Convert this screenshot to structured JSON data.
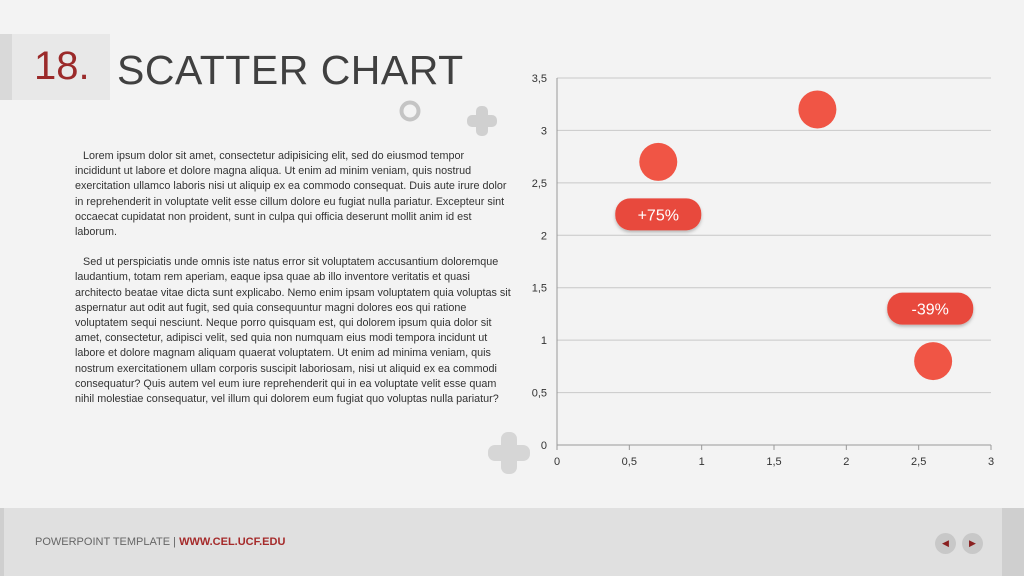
{
  "slide": {
    "number": "18.",
    "title": "SCATTER CHART",
    "paragraphs": [
      "Lorem ipsum dolor sit amet, consectetur adipisicing elit, sed do eiusmod tempor incididunt ut labore et dolore magna aliqua. Ut enim ad minim veniam, quis nostrud exercitation ullamco laboris nisi ut aliquip ex ea commodo consequat. Duis aute irure dolor in reprehenderit in voluptate velit esse cillum dolore eu fugiat nulla pariatur. Excepteur sint occaecat cupidatat non proident, sunt in culpa qui officia deserunt mollit anim id est laborum.",
      "Sed ut perspiciatis unde omnis iste natus error sit voluptatem accusantium doloremque laudantium, totam rem aperiam, eaque ipsa quae ab illo inventore veritatis et quasi architecto beatae vitae dicta sunt explicabo. Nemo enim ipsam voluptatem quia voluptas sit aspernatur aut odit aut fugit, sed quia consequuntur magni dolores eos qui ratione voluptatem sequi nesciunt. Neque porro quisquam est, qui dolorem ipsum quia dolor sit amet, consectetur, adipisci velit, sed quia non numquam eius modi tempora incidunt ut labore et dolore magnam aliquam quaerat voluptatem. Ut enim ad minima veniam, quis nostrum exercitationem ullam corporis suscipit laboriosam, nisi ut aliquid ex ea commodi consequatur? Quis autem vel eum iure reprehenderit qui in ea voluptate velit esse quam nihil molestiae consequatur, vel illum qui dolorem eum fugiat quo voluptas nulla pariatur?"
    ]
  },
  "footer": {
    "label": "POWERPOINT TEMPLATE",
    "separator": "|",
    "url": "WWW.CEL.UCF.EDU",
    "prev_icon": "prev-arrow-icon",
    "next_icon": "next-arrow-icon",
    "prev_glyph": "◀",
    "next_glyph": "▶"
  },
  "colors": {
    "accent": "#9b2a2a",
    "point": "#f05545",
    "callout": "#e84a3c",
    "grid": "#c8c8c8",
    "axis": "#999999"
  },
  "chart_data": {
    "type": "scatter",
    "points": [
      {
        "x": 0.7,
        "y": 2.7
      },
      {
        "x": 1.8,
        "y": 3.2
      },
      {
        "x": 2.6,
        "y": 0.8
      }
    ],
    "xlim": [
      0,
      3
    ],
    "ylim": [
      0,
      3.5
    ],
    "xticks": [
      "0",
      "0,5",
      "1",
      "1,5",
      "2",
      "2,5",
      "3"
    ],
    "yticks": [
      "0",
      "0,5",
      "1",
      "1,5",
      "2",
      "2,5",
      "3",
      "3,5"
    ],
    "grid": "horizontal",
    "annotations": [
      {
        "text": "+75%",
        "x": 0.7,
        "y": 2.2
      },
      {
        "text": "-39%",
        "x": 2.58,
        "y": 1.3
      }
    ]
  }
}
